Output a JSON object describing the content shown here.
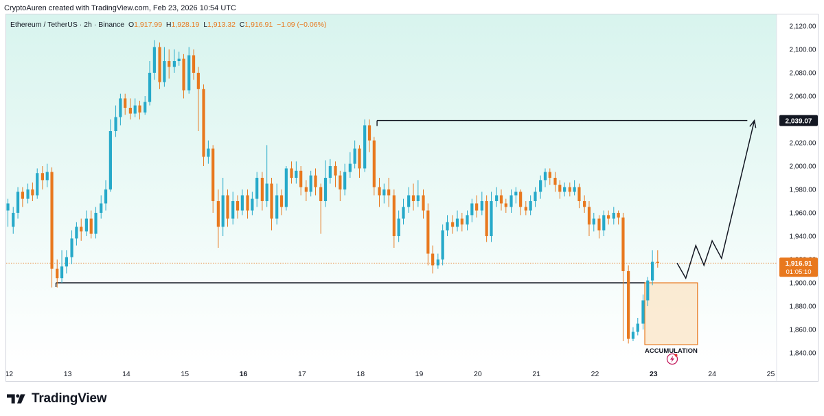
{
  "attribution": "CryptoAuren created with TradingView.com, Feb 23, 2026 10:54 UTC",
  "legend": {
    "symbol": "Ethereum / TetherUS · 2h · Binance",
    "open_key": "O",
    "open": "1,917.99",
    "high_key": "H",
    "high": "1,928.19",
    "low_key": "L",
    "low": "1,913.32",
    "close_key": "C",
    "close": "1,916.91",
    "change": "−1.09 (−0.06%)"
  },
  "logo": {
    "word": "TradingView",
    "icon": "tradingview-logo-icon"
  },
  "colors": {
    "up": "#26a9c9",
    "down": "#e8781e",
    "bg_top": "#d8f4ee",
    "bg_bottom": "#ffffff",
    "line": "#131722",
    "box_fill": "#fbe4c6",
    "box_stroke": "#e8781e",
    "flash": "#c2185b"
  },
  "chart_data": {
    "type": "candlestick",
    "y_axis": {
      "ticks": [
        2120,
        2100,
        2080,
        2060,
        2040,
        2020,
        2000,
        1980,
        1960,
        1940,
        1920,
        1900,
        1880,
        1860,
        1840
      ],
      "tick_labels": [
        "2,120.00",
        "2,100.00",
        "2,080.00",
        "2,060.00",
        "2,040.00",
        "2,020.00",
        "2,000.00",
        "1,980.00",
        "1,960.00",
        "1,940.00",
        "1,920.00",
        "1,900.00",
        "1,880.00",
        "1,860.00",
        "1,840.00"
      ],
      "range": [
        1830,
        2130
      ],
      "position": "right"
    },
    "x_axis": {
      "labels": [
        "12",
        "13",
        "14",
        "15",
        "16",
        "17",
        "18",
        "19",
        "20",
        "21",
        "22",
        "23",
        "24",
        "25"
      ],
      "bold": [
        "16",
        "23"
      ],
      "range_days": [
        11.95,
        25.1
      ]
    },
    "candles": [
      [
        11.9,
        1935,
        1955,
        1930,
        1960
      ],
      [
        11.98,
        1962,
        1968,
        1948,
        1972
      ],
      [
        12.07,
        1948,
        1960,
        1942,
        1965
      ],
      [
        12.15,
        1960,
        1978,
        1955,
        1982
      ],
      [
        12.23,
        1978,
        1972,
        1965,
        1982
      ],
      [
        12.32,
        1972,
        1980,
        1968,
        1985
      ],
      [
        12.4,
        1980,
        1975,
        1970,
        1986
      ],
      [
        12.48,
        1975,
        1994,
        1972,
        1998
      ],
      [
        12.57,
        1994,
        1988,
        1980,
        2000
      ],
      [
        12.65,
        1988,
        1995,
        1982,
        2002
      ],
      [
        12.73,
        1995,
        1912,
        1896,
        1999
      ],
      [
        12.82,
        1912,
        1904,
        1896,
        1920
      ],
      [
        12.9,
        1904,
        1914,
        1900,
        1928
      ],
      [
        12.98,
        1914,
        1922,
        1908,
        1928
      ],
      [
        13.07,
        1922,
        1938,
        1916,
        1945
      ],
      [
        13.15,
        1938,
        1948,
        1932,
        1952
      ],
      [
        13.23,
        1948,
        1944,
        1936,
        1955
      ],
      [
        13.32,
        1944,
        1955,
        1940,
        1962
      ],
      [
        13.4,
        1955,
        1942,
        1938,
        1962
      ],
      [
        13.48,
        1942,
        1960,
        1938,
        1965
      ],
      [
        13.57,
        1960,
        1968,
        1955,
        1975
      ],
      [
        13.65,
        1968,
        1980,
        1962,
        1988
      ],
      [
        13.73,
        1980,
        2030,
        1978,
        2040
      ],
      [
        13.82,
        2030,
        2042,
        2025,
        2052
      ],
      [
        13.9,
        2042,
        2058,
        2035,
        2062
      ],
      [
        13.98,
        2058,
        2050,
        2044,
        2062
      ],
      [
        14.07,
        2050,
        2045,
        2040,
        2058
      ],
      [
        14.15,
        2045,
        2052,
        2042,
        2058
      ],
      [
        14.23,
        2052,
        2046,
        2040,
        2056
      ],
      [
        14.32,
        2046,
        2055,
        2044,
        2060
      ],
      [
        14.4,
        2055,
        2080,
        2052,
        2090
      ],
      [
        14.48,
        2080,
        2102,
        2074,
        2108
      ],
      [
        14.57,
        2102,
        2072,
        2066,
        2106
      ],
      [
        14.65,
        2072,
        2090,
        2068,
        2102
      ],
      [
        14.73,
        2090,
        2085,
        2075,
        2100
      ],
      [
        14.82,
        2085,
        2090,
        2080,
        2100
      ],
      [
        14.9,
        2090,
        2092,
        2086,
        2098
      ],
      [
        14.98,
        2092,
        2065,
        2058,
        2096
      ],
      [
        15.07,
        2065,
        2095,
        2062,
        2102
      ],
      [
        15.15,
        2095,
        2080,
        2074,
        2100
      ],
      [
        15.23,
        2080,
        2066,
        2030,
        2085
      ],
      [
        15.32,
        2066,
        2008,
        2000,
        2070
      ],
      [
        15.4,
        2008,
        2015,
        2002,
        2022
      ],
      [
        15.48,
        2015,
        1970,
        1960,
        2018
      ],
      [
        15.57,
        1970,
        1948,
        1930,
        1980
      ],
      [
        15.65,
        1948,
        1975,
        1940,
        1990
      ],
      [
        15.73,
        1975,
        1955,
        1948,
        1980
      ],
      [
        15.82,
        1955,
        1970,
        1950,
        1978
      ],
      [
        15.9,
        1970,
        1962,
        1955,
        1975
      ],
      [
        15.98,
        1962,
        1975,
        1958,
        1980
      ],
      [
        16.07,
        1975,
        1962,
        1955,
        1980
      ],
      [
        16.15,
        1962,
        1972,
        1958,
        1978
      ],
      [
        16.23,
        1972,
        1990,
        1965,
        1995
      ],
      [
        16.32,
        1990,
        1970,
        1962,
        1995
      ],
      [
        16.4,
        1970,
        1985,
        1965,
        2018
      ],
      [
        16.48,
        1985,
        1955,
        1945,
        1990
      ],
      [
        16.57,
        1955,
        1975,
        1950,
        1985
      ],
      [
        16.65,
        1975,
        1965,
        1958,
        1980
      ],
      [
        16.73,
        1965,
        1998,
        1962,
        2000
      ],
      [
        16.82,
        1998,
        1990,
        1985,
        2004
      ],
      [
        16.9,
        1990,
        1996,
        1985,
        2004
      ],
      [
        16.98,
        1996,
        1982,
        1975,
        2000
      ],
      [
        17.07,
        1982,
        1978,
        1970,
        1988
      ],
      [
        17.15,
        1978,
        1992,
        1974,
        1996
      ],
      [
        17.23,
        1992,
        1982,
        1975,
        1998
      ],
      [
        17.32,
        1982,
        1970,
        1942,
        1985
      ],
      [
        17.4,
        1970,
        1990,
        1965,
        2005
      ],
      [
        17.48,
        1990,
        2000,
        1985,
        2006
      ],
      [
        17.57,
        2000,
        1992,
        1982,
        2004
      ],
      [
        17.65,
        1992,
        1980,
        1970,
        1996
      ],
      [
        17.73,
        1980,
        1995,
        1975,
        2002
      ],
      [
        17.82,
        1995,
        2002,
        1990,
        2012
      ],
      [
        17.9,
        2002,
        2015,
        1998,
        2022
      ],
      [
        17.98,
        2015,
        1998,
        1990,
        2018
      ],
      [
        18.07,
        1998,
        2035,
        1995,
        2040
      ],
      [
        18.15,
        2035,
        2022,
        2012,
        2040
      ],
      [
        18.23,
        2022,
        1982,
        1975,
        2025
      ],
      [
        18.32,
        1982,
        1975,
        1965,
        1990
      ],
      [
        18.4,
        1975,
        1980,
        1968,
        1985
      ],
      [
        18.48,
        1980,
        1975,
        1965,
        1990
      ],
      [
        18.57,
        1975,
        1940,
        1930,
        1980
      ],
      [
        18.65,
        1940,
        1955,
        1935,
        1962
      ],
      [
        18.73,
        1955,
        1965,
        1950,
        1972
      ],
      [
        18.82,
        1965,
        1975,
        1960,
        1982
      ],
      [
        18.9,
        1975,
        1970,
        1962,
        1985
      ],
      [
        18.98,
        1970,
        1975,
        1965,
        1988
      ],
      [
        19.07,
        1975,
        1962,
        1955,
        1980
      ],
      [
        19.15,
        1962,
        1925,
        1915,
        1968
      ],
      [
        19.23,
        1925,
        1915,
        1908,
        1932
      ],
      [
        19.32,
        1915,
        1920,
        1912,
        1925
      ],
      [
        19.4,
        1920,
        1945,
        1915,
        1950
      ],
      [
        19.48,
        1945,
        1952,
        1940,
        1958
      ],
      [
        19.57,
        1952,
        1948,
        1942,
        1958
      ],
      [
        19.65,
        1948,
        1955,
        1944,
        1962
      ],
      [
        19.73,
        1955,
        1950,
        1944,
        1960
      ],
      [
        19.82,
        1950,
        1958,
        1945,
        1962
      ],
      [
        19.9,
        1958,
        1968,
        1952,
        1972
      ],
      [
        19.98,
        1968,
        1962,
        1956,
        1975
      ],
      [
        20.07,
        1962,
        1970,
        1958,
        1978
      ],
      [
        20.15,
        1970,
        1940,
        1935,
        1975
      ],
      [
        20.23,
        1940,
        1970,
        1935,
        1978
      ],
      [
        20.32,
        1970,
        1975,
        1965,
        1982
      ],
      [
        20.4,
        1975,
        1968,
        1962,
        1980
      ],
      [
        20.48,
        1968,
        1965,
        1960,
        1972
      ],
      [
        20.57,
        1965,
        1975,
        1960,
        1980
      ],
      [
        20.65,
        1975,
        1978,
        1968,
        1982
      ],
      [
        20.73,
        1978,
        1965,
        1958,
        1980
      ],
      [
        20.82,
        1965,
        1962,
        1958,
        1970
      ],
      [
        20.9,
        1962,
        1970,
        1958,
        1975
      ],
      [
        20.98,
        1970,
        1978,
        1965,
        1982
      ],
      [
        21.07,
        1978,
        1988,
        1972,
        1992
      ],
      [
        21.15,
        1988,
        1995,
        1982,
        1998
      ],
      [
        21.23,
        1995,
        1990,
        1984,
        1998
      ],
      [
        21.32,
        1990,
        1984,
        1978,
        1995
      ],
      [
        21.4,
        1984,
        1978,
        1972,
        1988
      ],
      [
        21.48,
        1978,
        1982,
        1974,
        1986
      ],
      [
        21.57,
        1982,
        1978,
        1974,
        1986
      ],
      [
        21.65,
        1978,
        1982,
        1975,
        1988
      ],
      [
        21.73,
        1982,
        1970,
        1964,
        1985
      ],
      [
        21.82,
        1970,
        1965,
        1960,
        1975
      ],
      [
        21.9,
        1965,
        1950,
        1940,
        1970
      ],
      [
        21.98,
        1950,
        1955,
        1944,
        1960
      ],
      [
        22.07,
        1955,
        1945,
        1938,
        1958
      ],
      [
        22.15,
        1945,
        1958,
        1940,
        1962
      ],
      [
        22.23,
        1958,
        1955,
        1950,
        1962
      ],
      [
        22.32,
        1955,
        1960,
        1950,
        1965
      ],
      [
        22.4,
        1960,
        1956,
        1950,
        1962
      ],
      [
        22.48,
        1956,
        1910,
        1850,
        1960
      ],
      [
        22.57,
        1910,
        1852,
        1848,
        1915
      ],
      [
        22.65,
        1852,
        1858,
        1850,
        1862
      ],
      [
        22.73,
        1858,
        1865,
        1855,
        1870
      ],
      [
        22.82,
        1865,
        1885,
        1860,
        1890
      ],
      [
        22.9,
        1885,
        1902,
        1880,
        1905
      ],
      [
        22.98,
        1902,
        1918,
        1898,
        1928
      ],
      [
        23.07,
        1918,
        1917,
        1913,
        1928
      ]
    ],
    "drawings": {
      "resistance_line": {
        "price": 2039.07,
        "from_day": 18.28,
        "to_day": 24.6
      },
      "support_line": {
        "price": 1900,
        "from_day": 12.8,
        "to_day": 22.85
      },
      "accumulation_box": {
        "from_day": 22.85,
        "to_day": 23.75,
        "top": 1900,
        "bottom": 1847,
        "label": "ACCUMULATION"
      },
      "projection_path": [
        [
          23.4,
          1917
        ],
        [
          23.55,
          1904
        ],
        [
          23.72,
          1932
        ],
        [
          23.86,
          1915
        ],
        [
          24.0,
          1936
        ],
        [
          24.16,
          1921
        ],
        [
          24.72,
          2039.07
        ]
      ]
    },
    "price_labels": {
      "target": {
        "price": 2039.07,
        "text": "2,039.07"
      },
      "last": {
        "price": 1916.91,
        "text": "1,916.91",
        "countdown": "01:05:10"
      }
    }
  }
}
